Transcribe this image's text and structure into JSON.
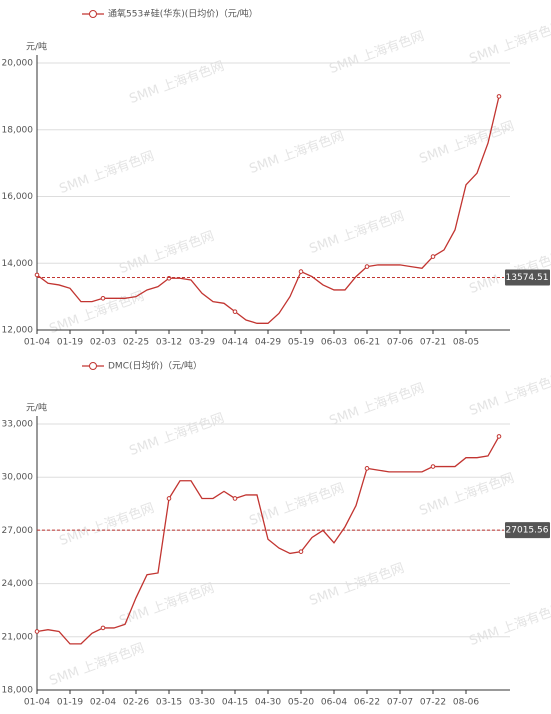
{
  "chart_data": [
    {
      "type": "line",
      "unit": "元/吨",
      "watermark": "SMM 上海有色网",
      "categories": [
        "01-04",
        null,
        null,
        "01-19",
        null,
        null,
        "02-03",
        null,
        null,
        "02-25",
        null,
        null,
        "03-12",
        null,
        null,
        "03-29",
        null,
        null,
        "04-14",
        null,
        null,
        "04-29",
        null,
        null,
        "05-19",
        null,
        null,
        "06-03",
        null,
        null,
        "06-21",
        null,
        null,
        "07-06",
        null,
        null,
        "07-21",
        null,
        null,
        "08-05",
        null,
        null,
        null
      ],
      "series": [
        {
          "name": "通氧553#硅(华东)(日均价)（元/吨）",
          "color": "#c23531",
          "values": [
            13650,
            13400,
            13350,
            13250,
            12850,
            12850,
            12950,
            12950,
            12950,
            13000,
            13200,
            13300,
            13550,
            13550,
            13500,
            13100,
            12850,
            12800,
            12550,
            12300,
            12200,
            12200,
            12500,
            13000,
            13750,
            13600,
            13350,
            13200,
            13200,
            13600,
            13900,
            13950,
            13950,
            13950,
            13900,
            13850,
            14200,
            14400,
            15000,
            16350,
            16700,
            17600,
            19000
          ]
        }
      ],
      "average": 13574.51,
      "ylim": [
        12000,
        20000
      ],
      "yticks": [
        {
          "value": 12000,
          "label": "12,000"
        },
        {
          "value": 14000,
          "label": "14,000"
        },
        {
          "value": 16000,
          "label": "16,000"
        },
        {
          "value": 18000,
          "label": "18,000"
        },
        {
          "value": 20000,
          "label": "20,000"
        }
      ],
      "grid": true
    },
    {
      "type": "line",
      "unit": "元/吨",
      "watermark": "SMM 上海有色网",
      "categories": [
        "01-04",
        null,
        null,
        "01-19",
        null,
        null,
        "02-04",
        null,
        null,
        "02-26",
        null,
        null,
        "03-15",
        null,
        null,
        "03-30",
        null,
        null,
        "04-15",
        null,
        null,
        "04-30",
        null,
        null,
        "05-20",
        null,
        null,
        "06-04",
        null,
        null,
        "06-22",
        null,
        null,
        "07-07",
        null,
        null,
        "07-22",
        null,
        null,
        "08-06",
        null,
        null,
        null
      ],
      "series": [
        {
          "name": "DMC(日均价)（元/吨）",
          "color": "#c23531",
          "values": [
            21300,
            21400,
            21300,
            20600,
            20600,
            21200,
            21500,
            21500,
            21700,
            23200,
            24500,
            24600,
            28800,
            29800,
            29800,
            28800,
            28800,
            29200,
            28800,
            29000,
            29000,
            26500,
            26000,
            25700,
            25800,
            26600,
            27000,
            26300,
            27200,
            28400,
            30500,
            30400,
            30300,
            30300,
            30300,
            30300,
            30600,
            30600,
            30600,
            31100,
            31100,
            31200,
            32300
          ]
        }
      ],
      "average": 27015.56,
      "ylim": [
        18000,
        33000
      ],
      "yticks": [
        {
          "value": 18000,
          "label": "18,000"
        },
        {
          "value": 21000,
          "label": "21,000"
        },
        {
          "value": 24000,
          "label": "24,000"
        },
        {
          "value": 27000,
          "label": "27,000"
        },
        {
          "value": 30000,
          "label": "30,000"
        },
        {
          "value": 33000,
          "label": "33,000"
        }
      ],
      "grid": true
    }
  ]
}
